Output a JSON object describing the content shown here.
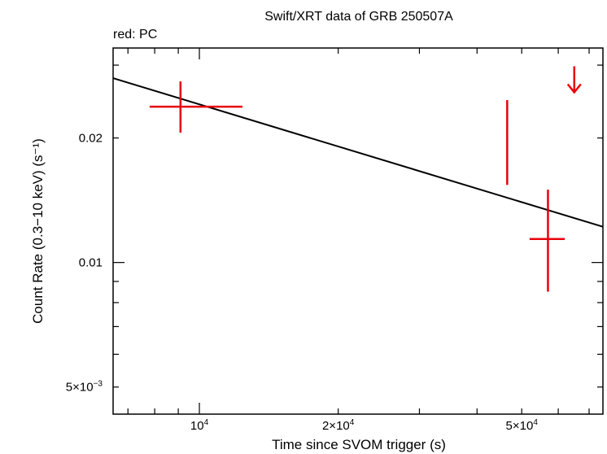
{
  "chart_data": {
    "type": "scatter",
    "title": "Swift/XRT data of GRB 250507A",
    "subtitle": "red: PC",
    "xlabel": "Time since SVOM trigger (s)",
    "ylabel": "Count Rate (0.3−10 keV) (s⁻¹)",
    "xscale": "log",
    "yscale": "log",
    "xlim": [
      6500,
      75000
    ],
    "ylim": [
      0.0043,
      0.033
    ],
    "x_tick_labels": [
      {
        "value": 10000,
        "base": "10",
        "exp": "4"
      },
      {
        "value": 20000,
        "base": "2×10",
        "exp": "4"
      },
      {
        "value": 50000,
        "base": "5×10",
        "exp": "4"
      }
    ],
    "y_tick_labels": [
      {
        "value": 0.005,
        "base": "5×10",
        "exp": "−3"
      },
      {
        "value": 0.01,
        "base": "0.01",
        "exp": ""
      },
      {
        "value": 0.02,
        "base": "0.02",
        "exp": ""
      }
    ],
    "series": [
      {
        "color": "#e8000b",
        "points": [
          {
            "x": 9100,
            "xerr_low": 7800,
            "xerr_high": 12400,
            "y": 0.0238,
            "yerr_low": 0.0206,
            "yerr_high": 0.0274
          },
          {
            "x": 46500,
            "xerr_low": 46300,
            "xerr_high": 46700,
            "y": 0.0205,
            "yerr_low": 0.0154,
            "yerr_high": 0.0247
          },
          {
            "x": 57000,
            "xerr_low": 52000,
            "xerr_high": 62000,
            "y": 0.0114,
            "yerr_low": 0.0085,
            "yerr_high": 0.015
          }
        ],
        "upper_limits": [
          {
            "x": 65000,
            "y": 0.0298
          }
        ]
      }
    ],
    "model_line": {
      "color": "#000000",
      "points": [
        [
          6500,
          0.0279
        ],
        [
          75000,
          0.0122
        ]
      ]
    },
    "grid": false,
    "legend": "none"
  }
}
